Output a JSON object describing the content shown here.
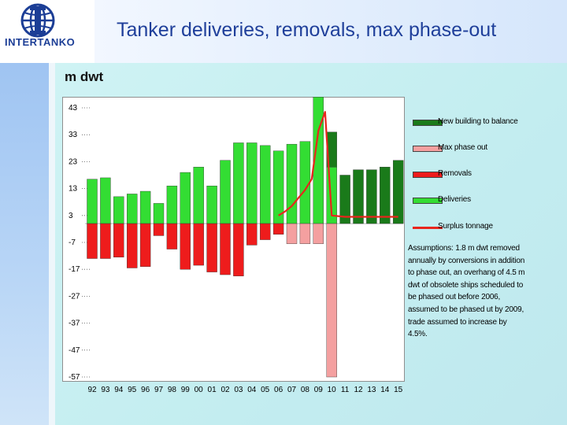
{
  "header": {
    "title": "Tanker deliveries, removals, max phase-out",
    "logo_text": "INTERTANKO"
  },
  "colors": {
    "deliveries": "#33dd33",
    "new_building": "#1a7a1a",
    "removals": "#ee1c1c",
    "max_phase_out": "#f4a0a0",
    "surplus": "#e8261c"
  },
  "chart_data": {
    "type": "bar",
    "ylabel": "m dwt",
    "ylim": [
      -57,
      48
    ],
    "yticks": [
      43,
      33,
      23,
      13,
      3,
      -7,
      -17,
      -27,
      -37,
      -47,
      -57
    ],
    "categories": [
      "92",
      "93",
      "94",
      "95",
      "96",
      "97",
      "98",
      "99",
      "00",
      "01",
      "02",
      "03",
      "04",
      "05",
      "06",
      "07",
      "08",
      "09",
      "10",
      "11",
      "12",
      "13",
      "14",
      "15"
    ],
    "series": [
      {
        "name": "Deliveries",
        "type": "bar_positive",
        "values": [
          16.5,
          17,
          10,
          11,
          12,
          7.5,
          14,
          19,
          21,
          14,
          23.5,
          30,
          30,
          29,
          27,
          29.5,
          30.5,
          47,
          21,
          0,
          0,
          0,
          0,
          0
        ]
      },
      {
        "name": "New building to balance",
        "type": "bar_positive",
        "values": [
          0,
          0,
          0,
          0,
          0,
          0,
          0,
          0,
          0,
          0,
          0,
          0,
          0,
          0,
          0,
          0,
          0,
          0,
          13,
          18,
          20,
          20,
          21,
          23.5
        ]
      },
      {
        "name": "Removals",
        "type": "bar_negative",
        "values": [
          -13,
          -13,
          -12.5,
          -16.5,
          -16,
          -4.5,
          -9.5,
          -17,
          -15.5,
          -18,
          -19,
          -19.5,
          -8,
          -6,
          -4,
          0,
          0,
          0,
          0,
          0,
          0,
          0,
          0,
          0
        ]
      },
      {
        "name": "Max phase out",
        "type": "bar_negative",
        "values": [
          0,
          0,
          0,
          0,
          0,
          0,
          0,
          0,
          0,
          0,
          0,
          0,
          0,
          0,
          0,
          -7.5,
          -7.5,
          -7.5,
          -57,
          0,
          0,
          0,
          0,
          0
        ]
      },
      {
        "name": "Surplus tonnage",
        "type": "line",
        "x": [
          "06",
          "06.5",
          "07",
          "07.5",
          "08",
          "08.5",
          "09",
          "09.5",
          "10",
          "11",
          "12",
          "13",
          "14",
          "15"
        ],
        "values": [
          3,
          4.5,
          6.5,
          9.5,
          12.5,
          16.5,
          34.5,
          41.5,
          3,
          2.5,
          2.5,
          2.5,
          2.5,
          2.5
        ]
      }
    ],
    "legend": [
      "New building to balance",
      "Max phase out",
      "Removals",
      "Deliveries",
      "Surplus tonnage"
    ]
  },
  "note": "Assumptions: 1.8 m dwt removed annually by conversions in addition to phase out, an overhang of 4.5 m dwt of obsolete ships scheduled to be phased out before 2006, assumed to be phased ut by 2009, trade assumed to increase by 4.5%."
}
